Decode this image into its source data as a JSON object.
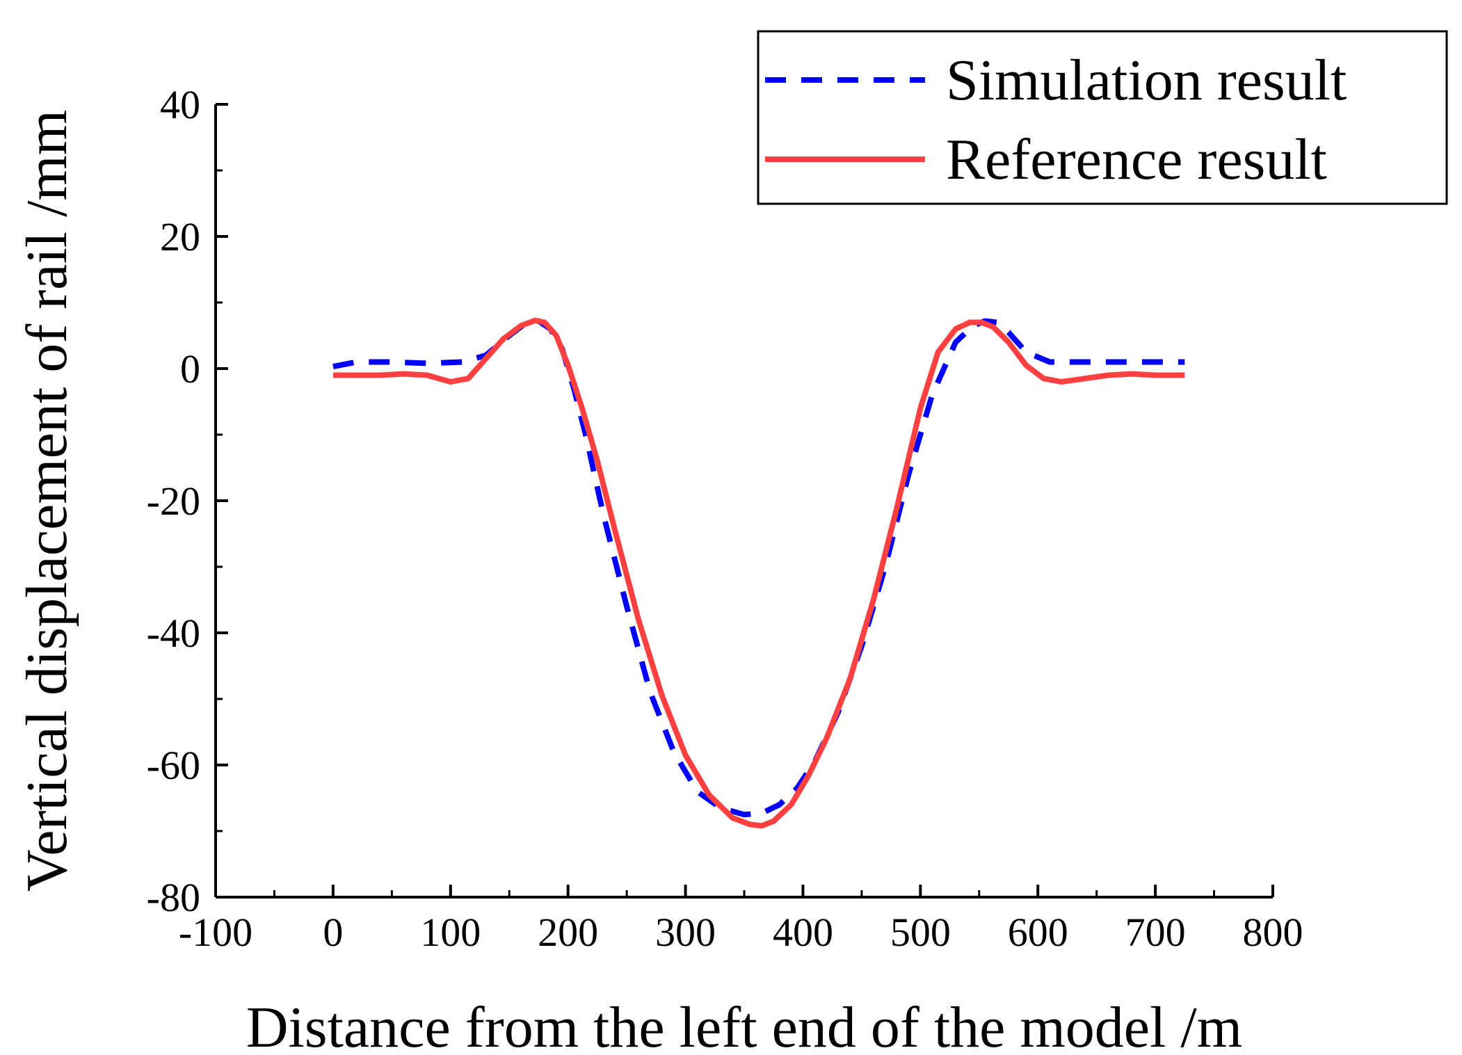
{
  "chart_data": {
    "type": "line",
    "xlabel": "Distance from the left end of the model /m",
    "ylabel": "Vertical displacement of rail /mm",
    "xlim": [
      -100,
      800
    ],
    "ylim": [
      -80,
      40
    ],
    "xticks": [
      -100,
      0,
      100,
      200,
      300,
      400,
      500,
      600,
      700,
      800
    ],
    "xtick_labels": [
      "-100",
      "0",
      "100",
      "200",
      "300",
      "400",
      "500",
      "600",
      "700",
      "800"
    ],
    "yticks": [
      -80,
      -60,
      -40,
      -20,
      0,
      20,
      40
    ],
    "ytick_labels": [
      "-80",
      "-60",
      "-40",
      "-20",
      "0",
      "20",
      "40"
    ],
    "legend_position": "top-right",
    "series": [
      {
        "name": "Simulation result",
        "color": "#0000ff",
        "style": "dashed",
        "x": [
          0,
          20,
          50,
          80,
          110,
          130,
          150,
          165,
          175,
          185,
          195,
          205,
          215,
          230,
          250,
          270,
          290,
          310,
          330,
          350,
          365,
          380,
          395,
          410,
          430,
          450,
          470,
          490,
          510,
          530,
          545,
          555,
          565,
          575,
          590,
          610,
          640,
          670,
          700,
          725
        ],
        "y": [
          0.3,
          1.0,
          1.0,
          0.8,
          1.0,
          2.0,
          5.0,
          7.0,
          7.2,
          6.0,
          3.0,
          -3.0,
          -10.0,
          -22.0,
          -36.0,
          -49.0,
          -58.0,
          -64.0,
          -66.5,
          -67.5,
          -67.3,
          -66.0,
          -63.5,
          -59.5,
          -52.0,
          -42.0,
          -30.0,
          -16.0,
          -4.0,
          4.0,
          6.5,
          7.2,
          7.0,
          5.5,
          2.5,
          1.0,
          1.0,
          1.0,
          1.0,
          1.0
        ]
      },
      {
        "name": "Reference result",
        "color": "#ff4040",
        "style": "solid",
        "x": [
          0,
          20,
          40,
          60,
          80,
          100,
          115,
          130,
          145,
          160,
          172,
          180,
          190,
          200,
          212,
          225,
          240,
          260,
          280,
          300,
          320,
          340,
          355,
          365,
          375,
          390,
          405,
          420,
          440,
          460,
          480,
          500,
          515,
          530,
          542,
          552,
          562,
          575,
          590,
          605,
          620,
          640,
          660,
          680,
          700,
          725
        ],
        "y": [
          -1.0,
          -1.0,
          -1.0,
          -0.8,
          -1.0,
          -2.0,
          -1.5,
          1.5,
          4.5,
          6.5,
          7.3,
          7.0,
          5.0,
          0.5,
          -6.0,
          -14.0,
          -24.5,
          -38.0,
          -49.5,
          -58.5,
          -64.5,
          -68.0,
          -69.0,
          -69.2,
          -68.5,
          -66.0,
          -61.5,
          -56.0,
          -47.0,
          -35.0,
          -21.0,
          -6.0,
          2.5,
          6.0,
          7.0,
          7.0,
          6.3,
          4.0,
          0.5,
          -1.5,
          -2.0,
          -1.5,
          -1.0,
          -0.8,
          -1.0,
          -1.0
        ]
      }
    ]
  }
}
